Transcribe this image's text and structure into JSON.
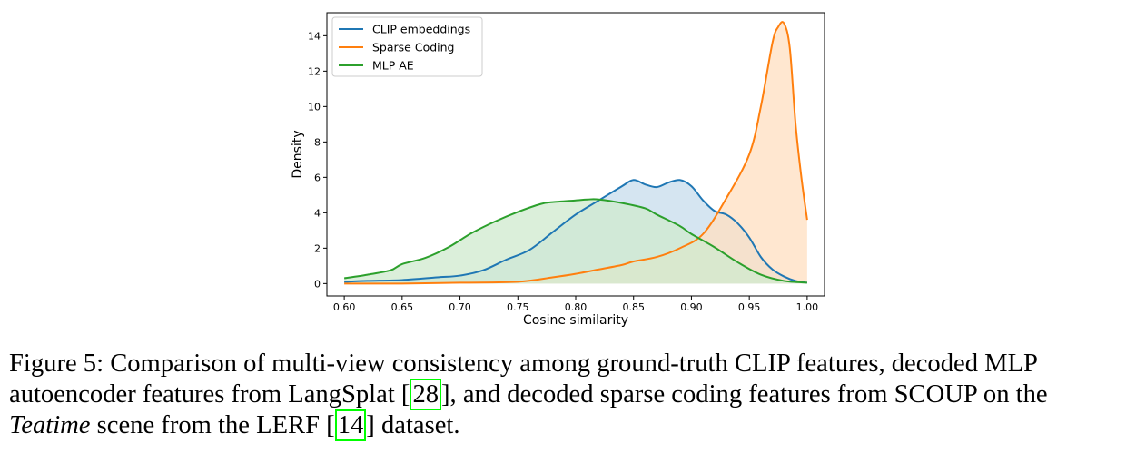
{
  "chart_data": {
    "type": "area",
    "xlabel": "Cosine similarity",
    "ylabel": "Density",
    "xlim": [
      0.585,
      1.015
    ],
    "ylim": [
      -0.7,
      15.3
    ],
    "x_ticks": [
      "0.60",
      "0.65",
      "0.70",
      "0.75",
      "0.80",
      "0.85",
      "0.90",
      "0.95",
      "1.00"
    ],
    "y_ticks": [
      "0",
      "2",
      "4",
      "6",
      "8",
      "10",
      "12",
      "14"
    ],
    "grid": false,
    "legend_position": "top-left",
    "series": [
      {
        "name": "CLIP embeddings",
        "color": "#1f77b4",
        "fill": "#c7dcec",
        "points": [
          [
            0.6,
            0.1
          ],
          [
            0.62,
            0.15
          ],
          [
            0.65,
            0.2
          ],
          [
            0.68,
            0.35
          ],
          [
            0.7,
            0.45
          ],
          [
            0.72,
            0.75
          ],
          [
            0.74,
            1.35
          ],
          [
            0.76,
            1.9
          ],
          [
            0.78,
            2.9
          ],
          [
            0.8,
            3.9
          ],
          [
            0.82,
            4.7
          ],
          [
            0.84,
            5.5
          ],
          [
            0.85,
            5.85
          ],
          [
            0.86,
            5.6
          ],
          [
            0.87,
            5.45
          ],
          [
            0.88,
            5.7
          ],
          [
            0.89,
            5.85
          ],
          [
            0.9,
            5.5
          ],
          [
            0.91,
            4.7
          ],
          [
            0.92,
            4.1
          ],
          [
            0.93,
            3.9
          ],
          [
            0.94,
            3.4
          ],
          [
            0.95,
            2.6
          ],
          [
            0.96,
            1.5
          ],
          [
            0.97,
            0.8
          ],
          [
            0.98,
            0.4
          ],
          [
            0.99,
            0.15
          ],
          [
            1.0,
            0.05
          ]
        ]
      },
      {
        "name": "Sparse Coding",
        "color": "#ff7f0e",
        "fill": "#ffdfc0",
        "points": [
          [
            0.6,
            0.0
          ],
          [
            0.65,
            0.0
          ],
          [
            0.7,
            0.05
          ],
          [
            0.75,
            0.1
          ],
          [
            0.78,
            0.35
          ],
          [
            0.8,
            0.55
          ],
          [
            0.82,
            0.8
          ],
          [
            0.84,
            1.05
          ],
          [
            0.85,
            1.25
          ],
          [
            0.87,
            1.5
          ],
          [
            0.89,
            2.0
          ],
          [
            0.91,
            2.8
          ],
          [
            0.93,
            4.8
          ],
          [
            0.95,
            7.3
          ],
          [
            0.96,
            10.0
          ],
          [
            0.97,
            13.6
          ],
          [
            0.975,
            14.5
          ],
          [
            0.98,
            14.7
          ],
          [
            0.985,
            13.3
          ],
          [
            0.99,
            9.0
          ],
          [
            0.995,
            6.0
          ],
          [
            1.0,
            3.6
          ]
        ]
      },
      {
        "name": "MLP AE",
        "color": "#2ca02c",
        "fill": "#cfe9cd",
        "points": [
          [
            0.6,
            0.3
          ],
          [
            0.62,
            0.5
          ],
          [
            0.64,
            0.75
          ],
          [
            0.65,
            1.1
          ],
          [
            0.67,
            1.45
          ],
          [
            0.69,
            2.05
          ],
          [
            0.71,
            2.85
          ],
          [
            0.73,
            3.5
          ],
          [
            0.75,
            4.05
          ],
          [
            0.77,
            4.5
          ],
          [
            0.78,
            4.6
          ],
          [
            0.8,
            4.7
          ],
          [
            0.81,
            4.75
          ],
          [
            0.82,
            4.75
          ],
          [
            0.84,
            4.55
          ],
          [
            0.86,
            4.25
          ],
          [
            0.87,
            3.9
          ],
          [
            0.89,
            3.25
          ],
          [
            0.9,
            2.8
          ],
          [
            0.92,
            2.05
          ],
          [
            0.94,
            1.2
          ],
          [
            0.96,
            0.5
          ],
          [
            0.98,
            0.15
          ],
          [
            1.0,
            0.05
          ]
        ]
      }
    ]
  },
  "caption": {
    "line1": "Figure 5: Comparison of multi-view consistency among ground-truth CLIP features, decoded MLP",
    "line2_pre": "autoencoder features from LangSplat [",
    "ref1": "28",
    "line2_post": "], and decoded sparse coding features from SCOUP on the",
    "line3_italic": "Teatime",
    "line3_mid": " scene from the LERF [",
    "ref2": "14",
    "line3_post": "] dataset."
  }
}
